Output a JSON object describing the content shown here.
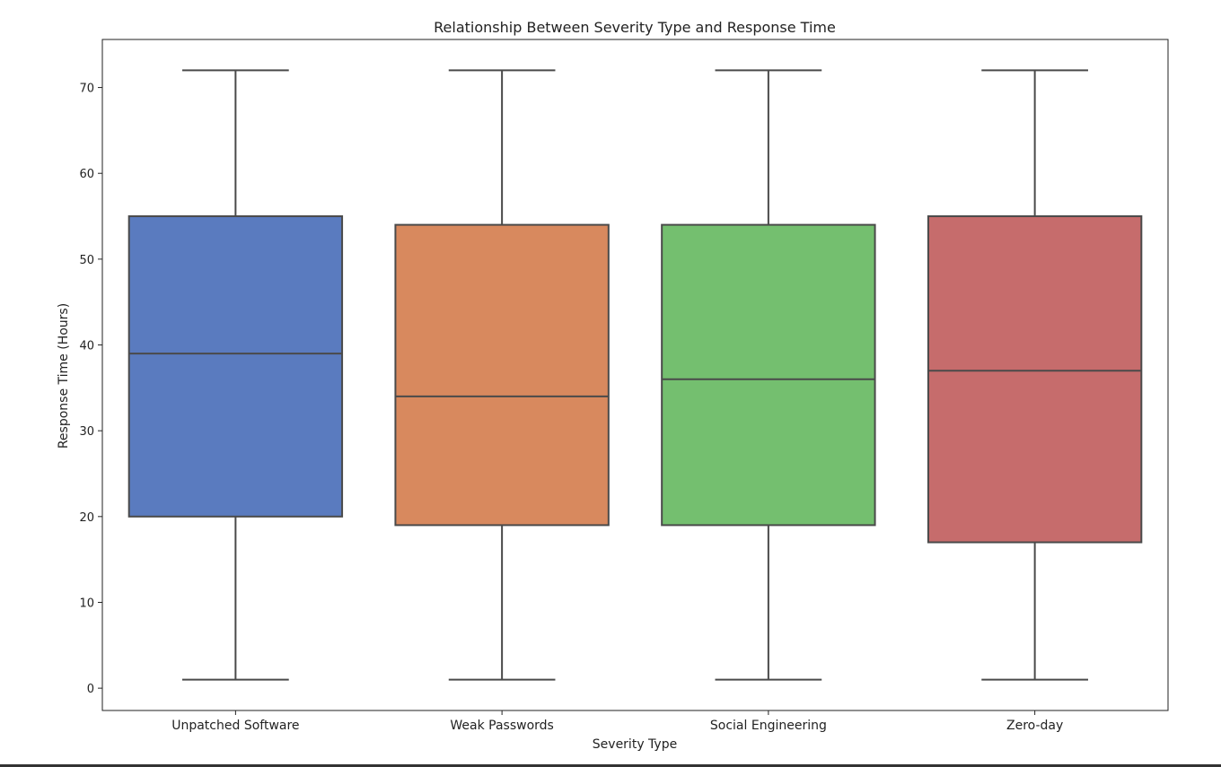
{
  "chart_data": {
    "type": "box",
    "title": "Relationship Between Severity Type and Response Time",
    "xlabel": "Severity Type",
    "ylabel": "Response Time (Hours)",
    "ylim": [
      -2.6,
      75.6
    ],
    "yticks": [
      0,
      10,
      20,
      30,
      40,
      50,
      60,
      70
    ],
    "grid": false,
    "categories": [
      "Unpatched Software",
      "Weak Passwords",
      "Social Engineering",
      "Zero-day"
    ],
    "boxes": [
      {
        "category": "Unpatched Software",
        "whisker_low": 1,
        "q1": 20,
        "median": 39,
        "q3": 55,
        "whisker_high": 72,
        "color": "#5a7bbf"
      },
      {
        "category": "Weak Passwords",
        "whisker_low": 1,
        "q1": 19,
        "median": 34,
        "q3": 54,
        "whisker_high": 72,
        "color": "#d8895e"
      },
      {
        "category": "Social Engineering",
        "whisker_low": 1,
        "q1": 19,
        "median": 36,
        "q3": 54,
        "whisker_high": 72,
        "color": "#74bf6f"
      },
      {
        "category": "Zero-day",
        "whisker_low": 1,
        "q1": 17,
        "median": 37,
        "q3": 55,
        "whisker_high": 72,
        "color": "#c66c6c"
      }
    ],
    "line_color": "#4a4a4a"
  }
}
